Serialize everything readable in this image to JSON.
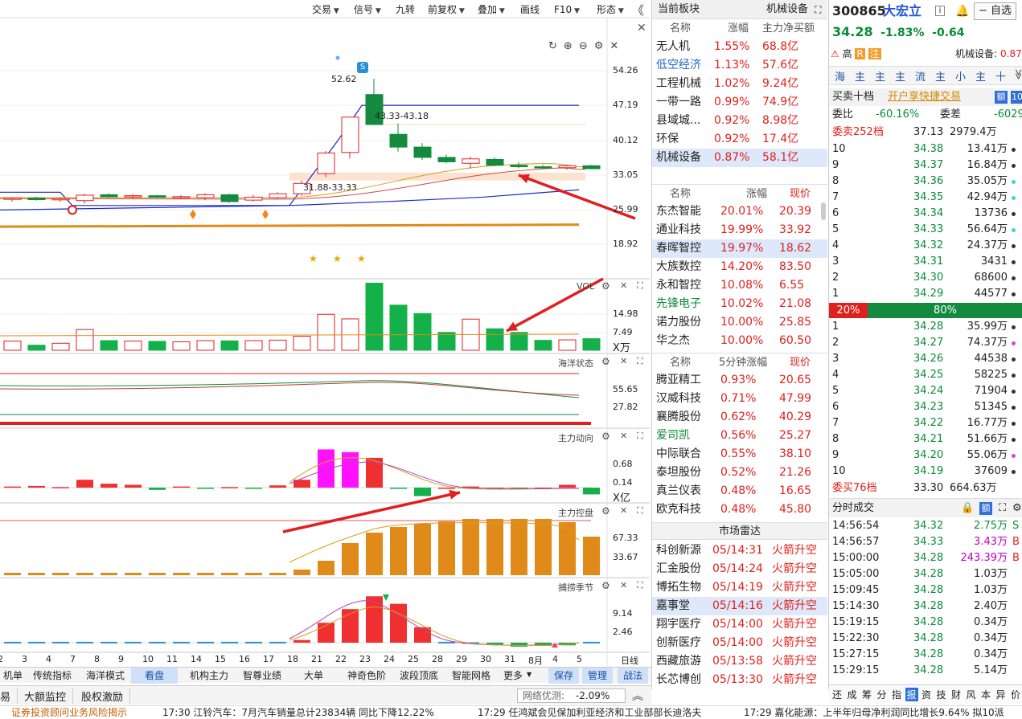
{
  "toolbar": {
    "items": [
      "交易",
      "信号",
      "九转",
      "前复权",
      "叠加",
      "画线",
      "F10",
      "形态"
    ],
    "collapse": "《"
  },
  "price_axis": [
    "54.26",
    "47.19",
    "40.12",
    "33.05",
    "25.99",
    "18.92"
  ],
  "vol_axis": [
    "14.98",
    "7.49",
    "X万"
  ],
  "vol_label": "VOL",
  "ocean": {
    "name": "海洋状态",
    "axis": [
      "55.65",
      "27.82"
    ]
  },
  "zhuli": {
    "name": "主力动向",
    "axis": [
      "0.68",
      "0.14",
      "X亿"
    ]
  },
  "kongpan": {
    "name": "主力控盘",
    "axis": [
      "67.33",
      "33.67"
    ]
  },
  "buhu": {
    "name": "捕捞季节",
    "axis": [
      "9.14",
      "2.46"
    ]
  },
  "annotations": {
    "high": "52.62",
    "range1": "43.33-43.18",
    "range2": "31.88-33.33",
    "s_badge": "S"
  },
  "x_labels": [
    "2",
    "3",
    "4",
    "7",
    "8",
    "9",
    "10",
    "11",
    "14",
    "15",
    "16",
    "17",
    "18",
    "21",
    "22",
    "23",
    "24",
    "25",
    "28",
    "29",
    "30",
    "31",
    "8月",
    "4",
    "5",
    "日线"
  ],
  "bottom_tabs": [
    "机单",
    "传统指标",
    "海洋模式",
    "看盘",
    "机构主力",
    "智尊业绩",
    "大单",
    "神奇色阶",
    "波段顶底",
    "智能网格",
    "更多"
  ],
  "bottom_actions": [
    "保存",
    "管理",
    "战法"
  ],
  "bottom_row2": [
    "易",
    "大额监控",
    "股权激励"
  ],
  "network": {
    "label": "网络优测:",
    "value": "-2.09%"
  },
  "ticker": [
    "证券投资顾问业务风险揭示",
    "17:30 江铃汽车：7月汽车销量总计23834辆 同比下降12.22%",
    "17:29 任鸿斌会见保加利亚经济和工业部部长迪洛夫",
    "17:29 嘉化能源：上半年归母净利润同比增长9.64% 拟10派"
  ],
  "sector": {
    "title": "当前板块",
    "current": "机械设备",
    "headers": [
      "名称",
      "涨幅",
      "主力净买额"
    ],
    "rows": [
      [
        "无人机",
        "1.55%",
        "68.8亿"
      ],
      [
        "低空经济",
        "1.13%",
        "57.6亿"
      ],
      [
        "工程机械",
        "1.02%",
        "9.24亿"
      ],
      [
        "一带一路",
        "0.99%",
        "74.9亿"
      ],
      [
        "县域城...",
        "0.92%",
        "8.98亿"
      ],
      [
        "环保",
        "0.92%",
        "17.4亿"
      ],
      [
        "机械设备",
        "0.87%",
        "58.1亿"
      ]
    ]
  },
  "gainers": {
    "headers": [
      "名称",
      "涨幅",
      "现价"
    ],
    "rows": [
      [
        "东杰智能",
        "20.01%",
        "20.39"
      ],
      [
        "通业科技",
        "19.99%",
        "33.92"
      ],
      [
        "春晖智控",
        "19.97%",
        "18.62"
      ],
      [
        "大族数控",
        "14.20%",
        "83.50"
      ],
      [
        "永和智控",
        "10.08%",
        "6.55"
      ],
      [
        "先锋电子",
        "10.02%",
        "21.08"
      ],
      [
        "诺力股份",
        "10.00%",
        "25.85"
      ],
      [
        "华之杰",
        "10.00%",
        "60.50"
      ]
    ]
  },
  "fivemin": {
    "headers": [
      "名称",
      "5分钟涨幅",
      "现价"
    ],
    "rows": [
      [
        "腾亚精工",
        "0.93%",
        "20.65"
      ],
      [
        "汉威科技",
        "0.71%",
        "47.99"
      ],
      [
        "襄腾股份",
        "0.62%",
        "40.29"
      ],
      [
        "爱司凯",
        "0.56%",
        "25.27"
      ],
      [
        "中际联合",
        "0.55%",
        "38.10"
      ],
      [
        "泰坦股份",
        "0.52%",
        "21.26"
      ],
      [
        "真兰仪表",
        "0.48%",
        "16.65"
      ],
      [
        "欧克科技",
        "0.48%",
        "45.80"
      ]
    ]
  },
  "radar": {
    "title": "市场雷达",
    "rows": [
      [
        "科创新源",
        "05/14:31",
        "火箭升空"
      ],
      [
        "汇金股份",
        "05/14:24",
        "火箭升空"
      ],
      [
        "博拓生物",
        "05/14:19",
        "火箭升空"
      ],
      [
        "嘉事堂",
        "05/14:16",
        "火箭升空"
      ],
      [
        "翔宇医疗",
        "05/14:00",
        "火箭升空"
      ],
      [
        "创新医疗",
        "05/14:00",
        "火箭升空"
      ],
      [
        "西藏旅游",
        "05/13:58",
        "火箭升空"
      ],
      [
        "长芯博创",
        "05/13:30",
        "火箭升空"
      ]
    ]
  },
  "stock": {
    "code": "300865",
    "name": "大宏立",
    "price": "34.28",
    "pct": "-1.83%",
    "chg": "-0.64",
    "self_select": "自选",
    "tags": [
      "高",
      "R",
      "注"
    ],
    "sector_label": "机械设备:",
    "sector_pct": "0.87%"
  },
  "quick_tabs": [
    "海",
    "主",
    "主",
    "主",
    "流",
    "主",
    "小",
    "主",
    "十"
  ],
  "book": {
    "title": "买卖十档",
    "link": "开户享快捷交易",
    "ratio_label": "委比",
    "ratio": "-60.16%",
    "diff_label": "委差",
    "diff": "-6029",
    "sell_total": [
      "委卖252档",
      "37.13",
      "2979.4万"
    ],
    "asks": [
      [
        "10",
        "34.38",
        "13.41万"
      ],
      [
        "9",
        "34.37",
        "16.84万"
      ],
      [
        "8",
        "34.36",
        "35.05万"
      ],
      [
        "7",
        "34.35",
        "42.94万"
      ],
      [
        "6",
        "34.34",
        "13736"
      ],
      [
        "5",
        "34.33",
        "56.64万"
      ],
      [
        "4",
        "34.32",
        "24.37万"
      ],
      [
        "3",
        "34.31",
        "3431"
      ],
      [
        "2",
        "34.30",
        "68600"
      ],
      [
        "1",
        "34.29",
        "44577"
      ]
    ],
    "bar": [
      "20%",
      "80%"
    ],
    "bids": [
      [
        "1",
        "34.28",
        "35.99万"
      ],
      [
        "2",
        "34.27",
        "74.37万"
      ],
      [
        "3",
        "34.26",
        "44538"
      ],
      [
        "4",
        "34.25",
        "58225"
      ],
      [
        "5",
        "34.24",
        "71904"
      ],
      [
        "6",
        "34.23",
        "51345"
      ],
      [
        "7",
        "34.22",
        "16.77万"
      ],
      [
        "8",
        "34.21",
        "51.66万"
      ],
      [
        "9",
        "34.20",
        "55.06万"
      ],
      [
        "10",
        "34.19",
        "37609"
      ]
    ],
    "buy_total": [
      "委买76档",
      "33.30",
      "664.63万"
    ]
  },
  "ticks": {
    "title": "分时成交",
    "rows": [
      [
        "14:56:54",
        "34.32",
        "2.75万",
        "S"
      ],
      [
        "14:56:57",
        "34.33",
        "3.43万",
        "B"
      ],
      [
        "15:00:00",
        "34.28",
        "243.39万",
        "B"
      ],
      [
        "15:05:00",
        "34.28",
        "1.03万",
        ""
      ],
      [
        "15:09:45",
        "34.28",
        "1.03万",
        ""
      ],
      [
        "15:14:30",
        "34.28",
        "2.40万",
        ""
      ],
      [
        "15:19:15",
        "34.28",
        "0.34万",
        ""
      ],
      [
        "15:22:30",
        "34.28",
        "0.34万",
        ""
      ],
      [
        "15:27:15",
        "34.28",
        "0.34万",
        ""
      ],
      [
        "15:29:15",
        "34.28",
        "5.14万",
        ""
      ]
    ]
  },
  "right_bottom_tabs": [
    "还",
    "成",
    "筹",
    "分",
    "指",
    "报",
    "资",
    "技",
    "财",
    "风",
    "本",
    "异",
    "价"
  ],
  "chart_data": {
    "type": "candlestick",
    "days": [
      "2",
      "3",
      "4",
      "7",
      "8",
      "9",
      "10",
      "11",
      "14",
      "15",
      "16",
      "17",
      "18",
      "21",
      "22",
      "23",
      "24",
      "25",
      "28",
      "29",
      "30",
      "31",
      "8月",
      "4",
      "5"
    ],
    "ohlc": [
      [
        28.1,
        28.5,
        27.6,
        28.3
      ],
      [
        28.3,
        28.6,
        27.8,
        28.0
      ],
      [
        28.0,
        28.4,
        27.6,
        28.2
      ],
      [
        27.8,
        29.2,
        27.2,
        28.9
      ],
      [
        29.0,
        29.3,
        28.4,
        28.6
      ],
      [
        28.6,
        29.1,
        28.2,
        28.8
      ],
      [
        28.8,
        29.0,
        28.3,
        28.5
      ],
      [
        28.5,
        28.9,
        28.1,
        28.6
      ],
      [
        28.4,
        29.3,
        27.9,
        29.0
      ],
      [
        29.0,
        29.2,
        27.3,
        27.6
      ],
      [
        27.9,
        29.0,
        27.6,
        28.5
      ],
      [
        28.4,
        29.5,
        28.1,
        29.2
      ],
      [
        29.2,
        31.9,
        28.8,
        31.3
      ],
      [
        33.3,
        37.9,
        32.6,
        37.5
      ],
      [
        37.6,
        44.8,
        36.4,
        44.8
      ],
      [
        49.4,
        52.6,
        43.2,
        43.3
      ],
      [
        41.3,
        43.5,
        37.8,
        38.7
      ],
      [
        38.7,
        39.5,
        36.1,
        36.6
      ],
      [
        36.6,
        37.2,
        35.4,
        35.7
      ],
      [
        35.4,
        36.8,
        34.3,
        36.3
      ],
      [
        36.2,
        36.6,
        34.8,
        35.0
      ],
      [
        35.0,
        35.6,
        34.4,
        34.7
      ],
      [
        34.7,
        35.1,
        34.2,
        34.6
      ],
      [
        34.5,
        35.1,
        34.1,
        34.9
      ],
      [
        34.9,
        35.1,
        34.2,
        34.3
      ]
    ],
    "volume": [
      3.8,
      2.1,
      2.9,
      8.6,
      4.0,
      3.8,
      3.7,
      3.5,
      4.0,
      3.9,
      4.0,
      4.2,
      5.8,
      14.9,
      13.0,
      27.8,
      18.7,
      15.2,
      7.4,
      12.9,
      8.9,
      7.4,
      4.1,
      4.3,
      4.8
    ],
    "zhuli": [
      0.02,
      0.03,
      0.01,
      0.14,
      0.07,
      0.05,
      -0.04,
      0.02,
      -0.02,
      0.01,
      -0.01,
      0.04,
      0.14,
      0.68,
      0.63,
      0.53,
      -0.01,
      -0.15,
      0.0,
      0.02,
      -0.01,
      -0.02,
      0.0,
      0.05,
      -0.12
    ],
    "kongpan": [
      3,
      3,
      3,
      3,
      3,
      3,
      3,
      3,
      3,
      3,
      3,
      3,
      7,
      18,
      40,
      53,
      60,
      64,
      67,
      70,
      70,
      70,
      70,
      66,
      48
    ],
    "buhu": [
      0.2,
      0.2,
      0.2,
      0.2,
      0.2,
      0.2,
      0.2,
      0.2,
      0.2,
      0.2,
      0.2,
      0.2,
      0.6,
      4.5,
      7.6,
      10.5,
      8.8,
      3.5,
      0.2,
      0.1,
      -0.5,
      -0.9,
      -0.7,
      -0.6,
      0.2
    ],
    "price_axis": [
      18.92,
      54.26
    ],
    "vol_axis": [
      0,
      14.98
    ]
  }
}
